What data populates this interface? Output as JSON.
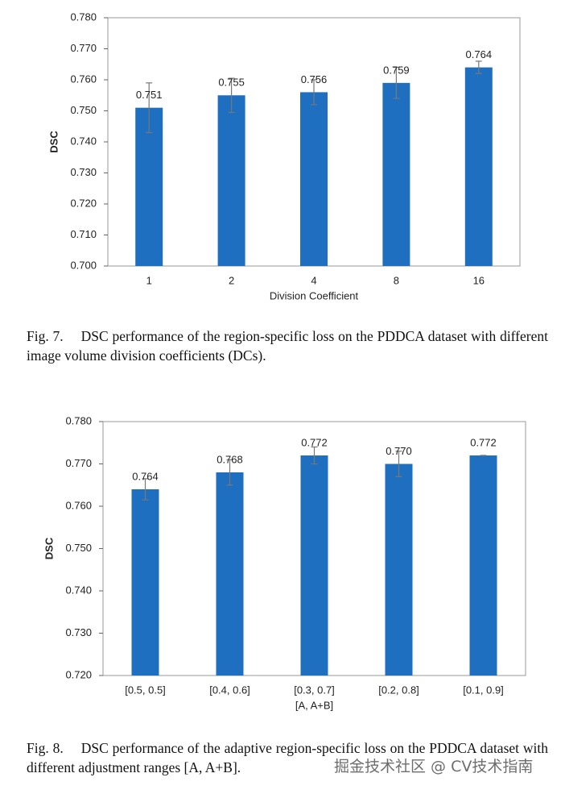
{
  "chart_data": [
    {
      "type": "bar",
      "xlabel": "Division Coefficient",
      "ylabel": "DSC",
      "categories": [
        "1",
        "2",
        "4",
        "8",
        "16"
      ],
      "values": [
        0.751,
        0.755,
        0.756,
        0.759,
        0.764
      ],
      "value_labels": [
        "0.751",
        "0.755",
        "0.756",
        "0.759",
        "0.764"
      ],
      "errors": [
        0.008,
        0.0055,
        0.004,
        0.005,
        0.002
      ],
      "color": "#1f6fc0",
      "ylim": [
        0.7,
        0.78
      ],
      "yticks": [
        {
          "value": 0.7,
          "label": "0.700"
        },
        {
          "value": 0.71,
          "label": "0.710"
        },
        {
          "value": 0.72,
          "label": "0.720"
        },
        {
          "value": 0.73,
          "label": "0.730"
        },
        {
          "value": 0.74,
          "label": "0.740"
        },
        {
          "value": 0.75,
          "label": "0.750"
        },
        {
          "value": 0.76,
          "label": "0.760"
        },
        {
          "value": 0.77,
          "label": "0.770"
        },
        {
          "value": 0.78,
          "label": "0.780"
        }
      ]
    },
    {
      "type": "bar",
      "xlabel": "[A, A+B]",
      "ylabel": "DSC",
      "categories": [
        "[0.5, 0.5]",
        "[0.4, 0.6]",
        "[0.3, 0.7]",
        "[0.2, 0.8]",
        "[0.1, 0.9]"
      ],
      "values": [
        0.764,
        0.768,
        0.772,
        0.77,
        0.772
      ],
      "value_labels": [
        "0.764",
        "0.768",
        "0.772",
        "0.770",
        "0.772"
      ],
      "errors": [
        0.0025,
        0.003,
        0.002,
        0.003,
        0
      ],
      "color": "#1f6fc0",
      "ylim": [
        0.72,
        0.78
      ],
      "yticks": [
        {
          "value": 0.72,
          "label": "0.720"
        },
        {
          "value": 0.73,
          "label": "0.730"
        },
        {
          "value": 0.74,
          "label": "0.740"
        },
        {
          "value": 0.75,
          "label": "0.750"
        },
        {
          "value": 0.76,
          "label": "0.760"
        },
        {
          "value": 0.77,
          "label": "0.770"
        },
        {
          "value": 0.78,
          "label": "0.780"
        }
      ]
    }
  ],
  "captions": [
    {
      "label": "Fig. 7.",
      "text": "DSC performance of the region-specific loss on the PDDCA dataset with different image volume division coefficients (DCs)."
    },
    {
      "label": "Fig. 8.",
      "text": "DSC performance of the adaptive region-specific loss on the PDDCA dataset with different adjustment ranges [A, A+B]."
    }
  ],
  "watermark": "掘金技术社区 @ CV技术指南"
}
